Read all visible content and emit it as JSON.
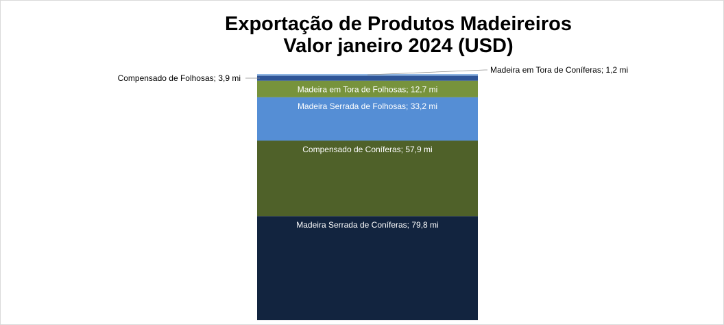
{
  "chart_data": {
    "type": "bar",
    "subtype": "stacked-100",
    "title_line1": "Exportação de Produtos Madeireiros",
    "title_line2": "Valor janeiro 2024 (USD)",
    "unit": "mi",
    "series": [
      {
        "name": "Madeira Serrada de Coníferas",
        "value": 79.8,
        "label": "Madeira Serrada de Coníferas; 79,8 mi",
        "color": "#12243f"
      },
      {
        "name": "Compensado de Coníferas",
        "value": 57.9,
        "label": "Compensado de Coníferas; 57,9 mi",
        "color": "#4f6129"
      },
      {
        "name": "Madeira Serrada de Folhosas",
        "value": 33.2,
        "label": "Madeira Serrada de Folhosas; 33,2 mi",
        "color": "#558ed5"
      },
      {
        "name": "Madeira em Tora de Folhosas",
        "value": 12.7,
        "label": "Madeira em Tora de Folhosas; 12,7 mi",
        "color": "#77933c"
      },
      {
        "name": "Compensado de Folhosas",
        "value": 3.9,
        "label": "Compensado de Folhosas; 3,9 mi",
        "color": "#2f5597"
      },
      {
        "name": "Madeira em Tora de Coníferas",
        "value": 1.2,
        "label": "Madeira em Tora de Coníferas; 1,2 mi",
        "color": "#8db4e2"
      }
    ],
    "legend": "none",
    "grid": false
  }
}
